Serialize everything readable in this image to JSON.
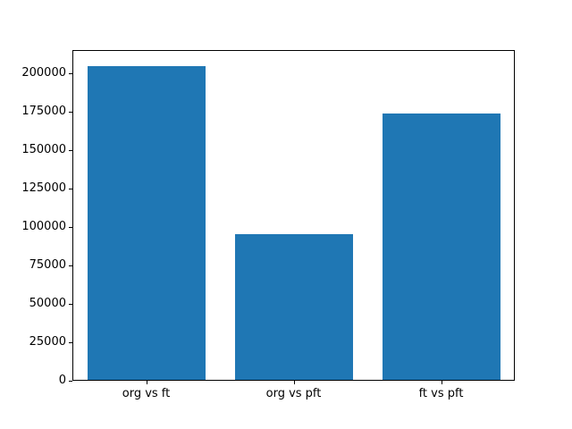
{
  "figure": {
    "background_color": "#ffffff",
    "frame_color": "#000000",
    "text_color": "#000000"
  },
  "chart_data": {
    "type": "bar",
    "title": "",
    "xlabel": "",
    "ylabel": "",
    "categories": [
      "org vs ft",
      "org vs pft",
      "ft vs pft"
    ],
    "values": [
      204000,
      95000,
      173000
    ],
    "bar_color": "#1f77b4",
    "bar_width_fraction": 0.8,
    "ylim": [
      0,
      215000
    ],
    "y_ticks": [
      0,
      25000,
      50000,
      75000,
      100000,
      125000,
      150000,
      175000,
      200000
    ],
    "grid": false,
    "legend": "none"
  }
}
